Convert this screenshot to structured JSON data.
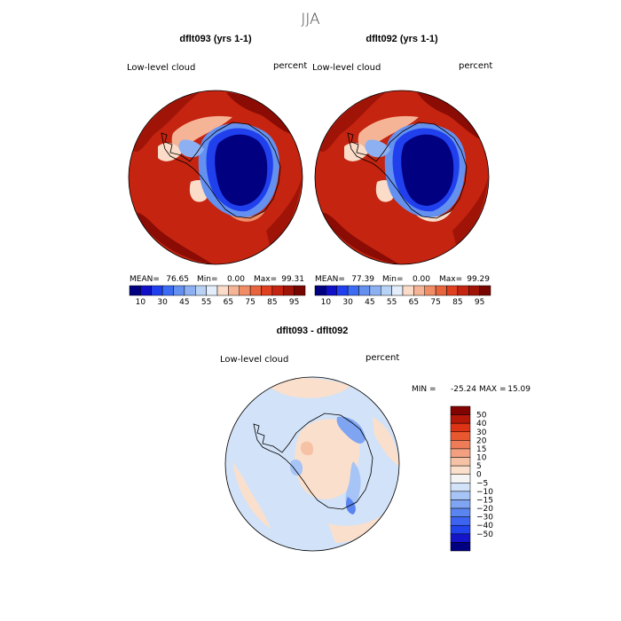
{
  "title": "JJA",
  "colors": {
    "abs_scale": [
      "#000080",
      "#1010c8",
      "#2040ee",
      "#3c6cf4",
      "#6490f0",
      "#8cb0f2",
      "#b8d2f6",
      "#e4eefa",
      "#fadcc8",
      "#f6b496",
      "#f08c66",
      "#e8643c",
      "#de4020",
      "#c42410",
      "#a01408",
      "#780600"
    ],
    "diff_scale": [
      "#000080",
      "#1414c8",
      "#2244ec",
      "#3c64f0",
      "#5a84f0",
      "#7ea4f2",
      "#a6c4f6",
      "#d2e2f8",
      "#f4f4f4",
      "#fae0cc",
      "#f6c2a6",
      "#f2a080",
      "#ee7c58",
      "#e85830",
      "#dc3414",
      "#b41808",
      "#820400"
    ]
  },
  "chart_data": [
    {
      "type": "heatmap",
      "panel": "dflt093 (yrs 1-1)",
      "title": "dflt093 (yrs 1-1)",
      "field_label": "Low-level cloud",
      "units": "percent",
      "stats": {
        "mean_label": "MEAN=",
        "mean": "76.65",
        "min_label": "Min=",
        "min": "0.00",
        "max_label": "Max=",
        "max": "99.31"
      },
      "colorbar_ticks": [
        "10",
        "30",
        "45",
        "55",
        "65",
        "75",
        "85",
        "95"
      ],
      "colorbar_levels": [
        5,
        10,
        20,
        30,
        40,
        45,
        50,
        55,
        60,
        65,
        70,
        75,
        80,
        85,
        90,
        95,
        100
      ]
    },
    {
      "type": "heatmap",
      "panel": "dflt092 (yrs 1-1)",
      "title": "dflt092 (yrs 1-1)",
      "field_label": "Low-level cloud",
      "units": "percent",
      "stats": {
        "mean_label": "MEAN=",
        "mean": "77.39",
        "min_label": "Min=",
        "min": "0.00",
        "max_label": "Max=",
        "max": "99.29"
      },
      "colorbar_ticks": [
        "10",
        "30",
        "45",
        "55",
        "65",
        "75",
        "85",
        "95"
      ],
      "colorbar_levels": [
        5,
        10,
        20,
        30,
        40,
        45,
        50,
        55,
        60,
        65,
        70,
        75,
        80,
        85,
        90,
        95,
        100
      ]
    },
    {
      "type": "heatmap",
      "panel": "dflt093 - dflt092",
      "title": "dflt093 - dflt092",
      "field_label": "Low-level cloud",
      "units": "percent",
      "stats": {
        "min_label": "MIN =",
        "min": "-25.24",
        "max_label": "MAX =",
        "max": "15.09"
      },
      "colorbar_ticks": [
        "50",
        "40",
        "30",
        "20",
        "15",
        "10",
        "5",
        "0",
        "−5",
        "−10",
        "−15",
        "−20",
        "−30",
        "−40",
        "−50"
      ],
      "colorbar_levels": [
        -50,
        -40,
        -30,
        -20,
        -15,
        -10,
        -5,
        0,
        5,
        10,
        15,
        20,
        30,
        40,
        50
      ]
    }
  ]
}
